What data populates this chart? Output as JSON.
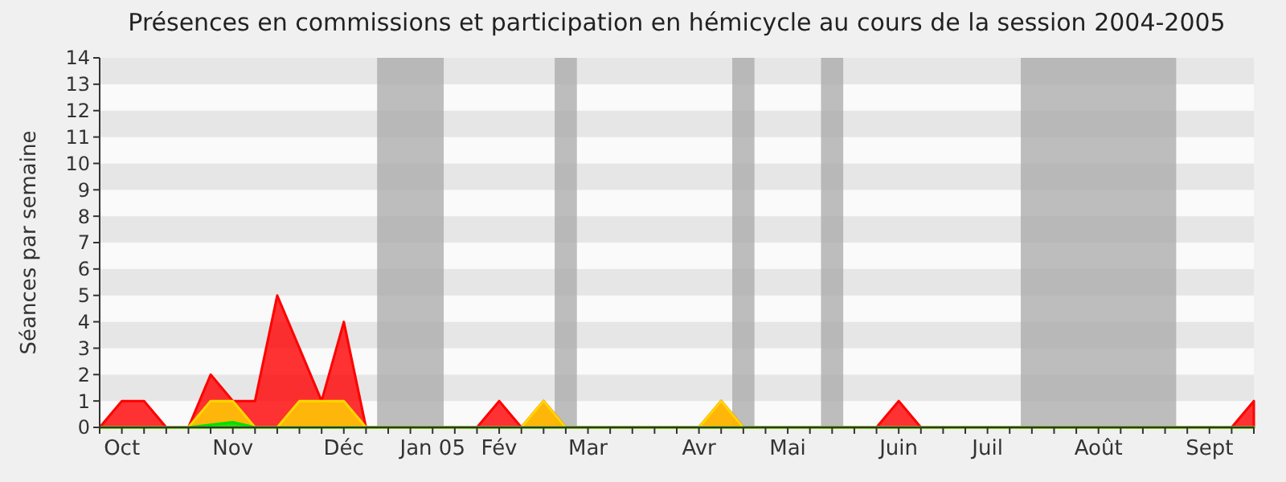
{
  "chart_data": {
    "type": "area",
    "title": "Présences en commissions et participation en hémicycle au cours de la session 2004-2005",
    "ylabel": "Séances par semaine",
    "categories": [
      null,
      "Oct",
      null,
      null,
      null,
      null,
      "Nov",
      null,
      null,
      null,
      null,
      "Déc",
      null,
      null,
      null,
      "Jan 05",
      null,
      null,
      "Fév",
      null,
      null,
      null,
      "Mar",
      null,
      null,
      null,
      null,
      "Avr",
      null,
      null,
      null,
      "Mai",
      null,
      null,
      null,
      null,
      "Juin",
      null,
      null,
      null,
      "Juil",
      null,
      null,
      null,
      null,
      "Août",
      null,
      null,
      null,
      null,
      "Sept",
      null,
      null
    ],
    "series": [
      {
        "color": "#ff0000",
        "values": [
          0,
          1,
          1,
          0,
          0,
          2,
          1,
          1,
          5,
          3,
          1,
          4,
          0,
          0,
          0,
          0,
          0,
          0,
          1,
          0,
          1,
          0,
          0,
          0,
          0,
          0,
          0,
          0,
          1,
          0,
          0,
          0,
          0,
          0,
          0,
          0,
          1,
          0,
          0,
          0,
          0,
          0,
          0,
          0,
          0,
          0,
          0,
          0,
          0,
          0,
          0,
          0,
          1
        ]
      },
      {
        "color": "#ffd700",
        "values": [
          0,
          0,
          0,
          0,
          0,
          1,
          1,
          0,
          0,
          1,
          1,
          1,
          0,
          0,
          0,
          0,
          0,
          0,
          0,
          0,
          1,
          0,
          0,
          0,
          0,
          0,
          0,
          0,
          1,
          0,
          0,
          0,
          0,
          0,
          0,
          0,
          0,
          0,
          0,
          0,
          0,
          0,
          0,
          0,
          0,
          0,
          0,
          0,
          0,
          0,
          0,
          0,
          0
        ]
      },
      {
        "color": "#00dd00",
        "values": [
          0,
          0,
          0,
          0,
          0,
          0.1,
          0.2,
          0,
          0,
          0,
          0,
          0,
          0,
          0,
          0,
          0,
          0,
          0,
          0,
          0,
          0,
          0,
          0,
          0,
          0,
          0,
          0,
          0,
          0,
          0,
          0,
          0,
          0,
          0,
          0,
          0,
          0,
          0,
          0,
          0,
          0,
          0,
          0,
          0,
          0,
          0,
          0,
          0,
          0,
          0,
          0,
          0,
          0
        ]
      }
    ],
    "ylim": [
      0,
      14
    ],
    "yticks": [
      0,
      1,
      2,
      3,
      4,
      5,
      6,
      7,
      8,
      9,
      10,
      11,
      12,
      13,
      14
    ]
  }
}
